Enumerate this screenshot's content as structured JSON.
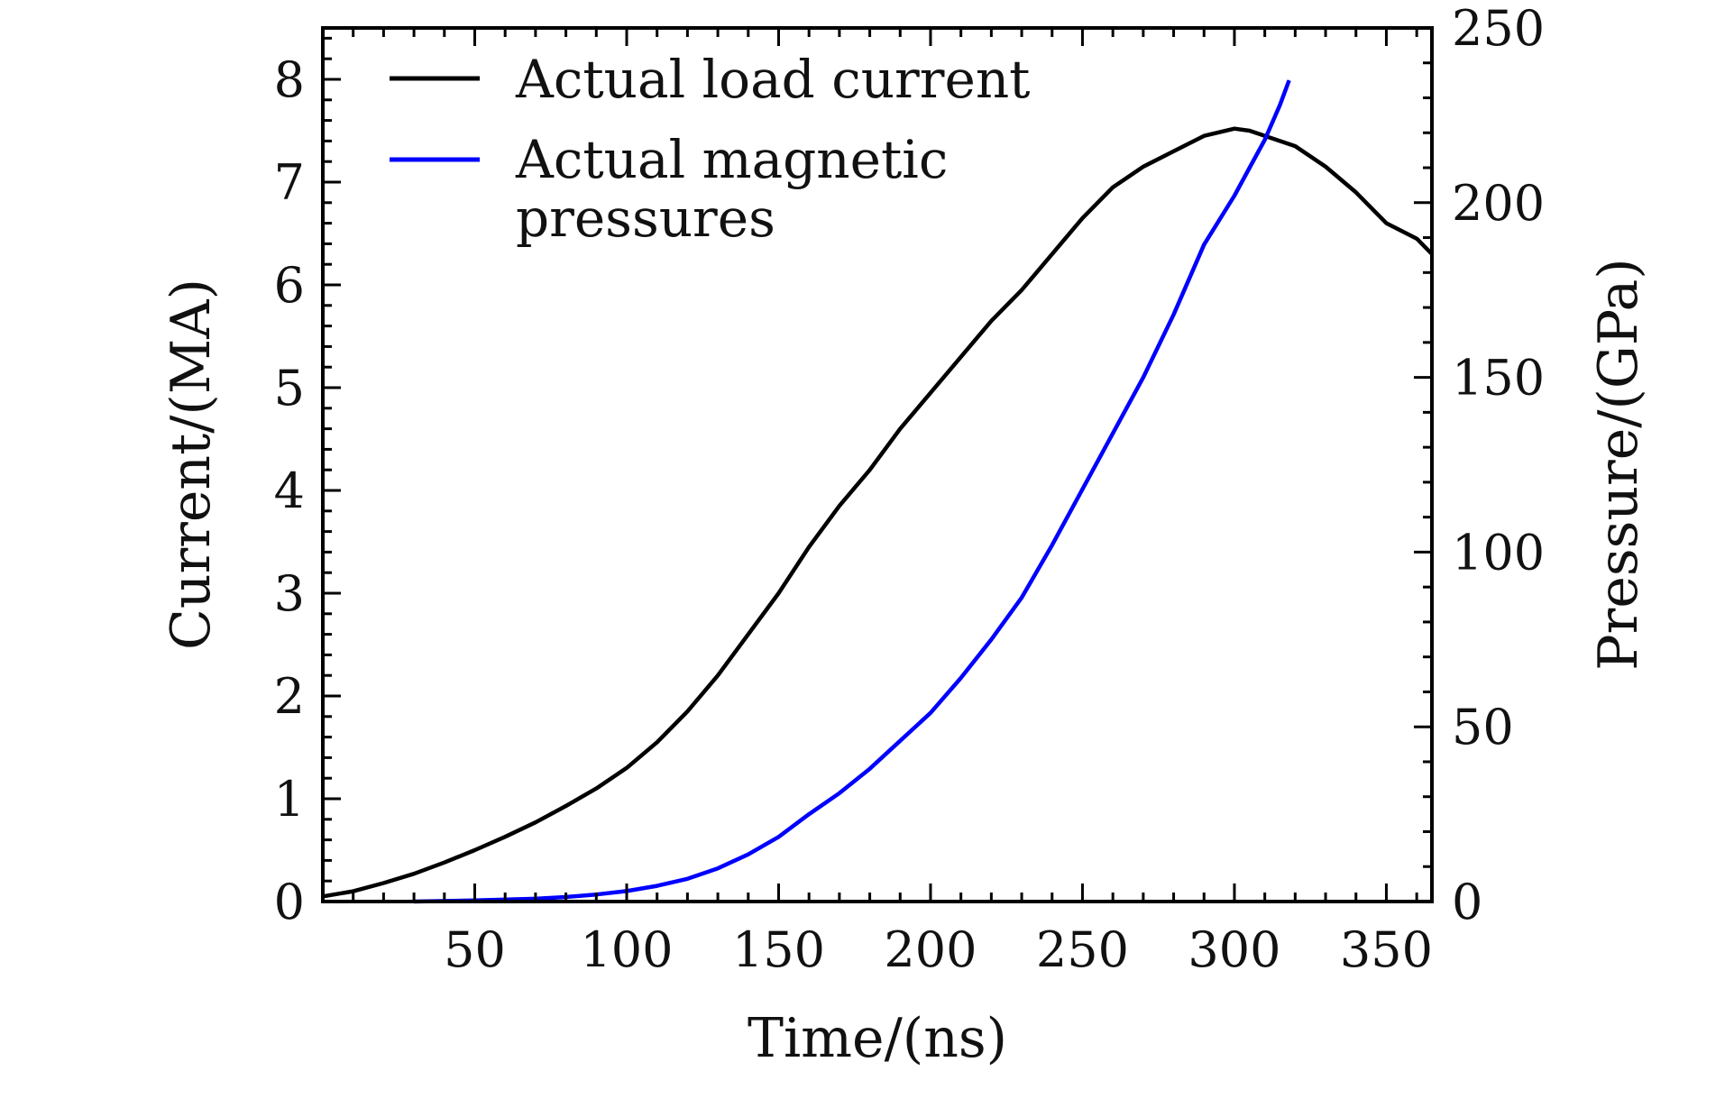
{
  "chart_data": {
    "type": "line",
    "title": "",
    "xlabel": "Time/(ns)",
    "ylabel": "Current/(MA)",
    "y2label": "Pressure/(GPa)",
    "xlim": [
      0,
      365
    ],
    "ylim": [
      0,
      8.5
    ],
    "y2lim": [
      0,
      250
    ],
    "x_ticks": [
      50,
      100,
      150,
      200,
      250,
      300,
      350
    ],
    "y_ticks": [
      0,
      1,
      2,
      3,
      4,
      5,
      6,
      7,
      8
    ],
    "y2_ticks": [
      0,
      50,
      100,
      150,
      200,
      250
    ],
    "x_tick_labels": [
      "50",
      "100",
      "150",
      "200",
      "250",
      "300",
      "350"
    ],
    "y_tick_labels": [
      "0",
      "1",
      "2",
      "3",
      "4",
      "5",
      "6",
      "7",
      "8"
    ],
    "y2_tick_labels": [
      "0",
      "50",
      "100",
      "150",
      "200",
      "250"
    ],
    "grid": false,
    "legend_position": "top-left",
    "series": [
      {
        "name": "Actual load current",
        "axis": "left",
        "color": "#000000",
        "x": [
          0,
          10,
          20,
          30,
          40,
          50,
          60,
          70,
          80,
          90,
          100,
          110,
          120,
          130,
          140,
          150,
          160,
          170,
          180,
          190,
          200,
          210,
          220,
          230,
          240,
          250,
          260,
          270,
          280,
          290,
          300,
          305,
          310,
          320,
          330,
          340,
          350,
          360,
          365
        ],
        "y": [
          0.05,
          0.1,
          0.18,
          0.27,
          0.38,
          0.5,
          0.63,
          0.77,
          0.93,
          1.1,
          1.3,
          1.55,
          1.85,
          2.2,
          2.6,
          3.0,
          3.45,
          3.85,
          4.2,
          4.6,
          4.95,
          5.3,
          5.65,
          5.95,
          6.3,
          6.65,
          6.95,
          7.15,
          7.3,
          7.45,
          7.52,
          7.5,
          7.45,
          7.35,
          7.15,
          6.9,
          6.6,
          6.45,
          6.3
        ]
      },
      {
        "name": "Actual magnetic pressures",
        "axis": "right",
        "color": "#0000ff",
        "x": [
          30,
          50,
          70,
          80,
          90,
          100,
          110,
          120,
          130,
          140,
          150,
          160,
          170,
          180,
          190,
          200,
          210,
          220,
          230,
          240,
          250,
          260,
          270,
          280,
          290,
          300,
          305,
          310,
          315,
          318
        ],
        "y": [
          0,
          0.3,
          0.8,
          1.3,
          2.0,
          3.0,
          4.5,
          6.5,
          9.5,
          13.5,
          18.5,
          25,
          31,
          38,
          46,
          54,
          64,
          75,
          87,
          102,
          118,
          134,
          150,
          168,
          188,
          202,
          210,
          218,
          228,
          235
        ]
      }
    ],
    "legend": [
      {
        "label_lines": [
          "Actual load current"
        ],
        "color": "#000000"
      },
      {
        "label_lines": [
          "Actual magnetic",
          "pressures"
        ],
        "color": "#0000ff"
      }
    ]
  }
}
